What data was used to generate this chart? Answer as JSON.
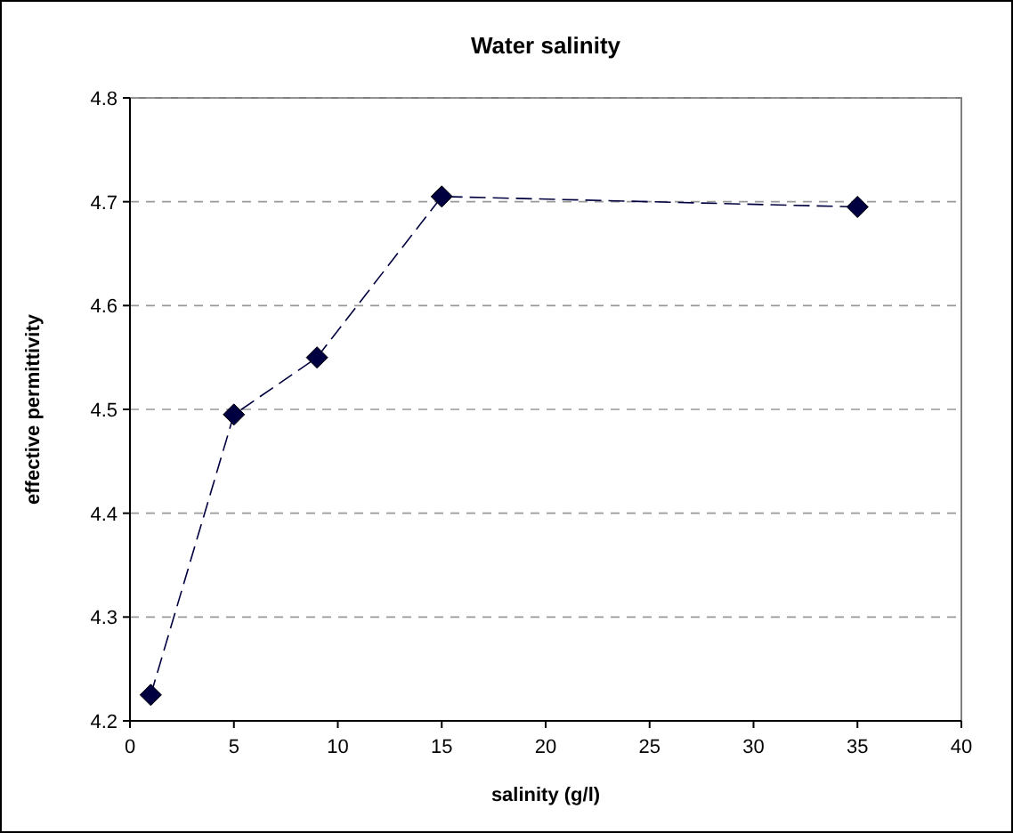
{
  "chart_data": {
    "type": "line",
    "title": "Water salinity",
    "xlabel": "salinity (g/l)",
    "ylabel": "effective permittivity",
    "x": [
      1,
      5,
      9,
      15,
      35
    ],
    "series": [
      {
        "color": "#000040",
        "values": [
          4.225,
          4.495,
          4.55,
          4.705,
          4.695
        ]
      }
    ],
    "xlim": [
      0,
      40
    ],
    "xticks": [
      0,
      5,
      10,
      15,
      20,
      25,
      30,
      35,
      40
    ],
    "ylim": [
      4.2,
      4.8
    ],
    "yticks": [
      4.2,
      4.3,
      4.4,
      4.5,
      4.6,
      4.7,
      4.8
    ],
    "grid": "y",
    "marker": "diamond",
    "line_style": "dashed"
  }
}
